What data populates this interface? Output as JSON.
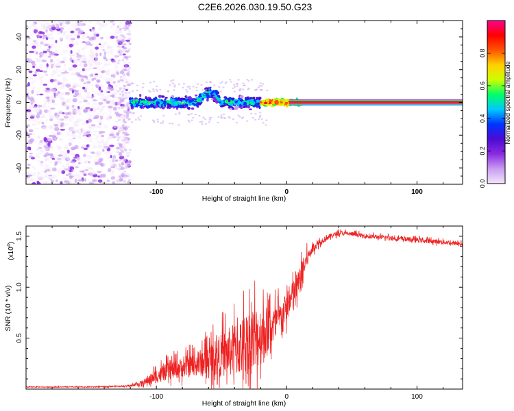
{
  "figure_title": "C2E6.2026.030.19.50.G23",
  "chart_data": [
    {
      "type": "heatmap",
      "title": "C2E6.2026.030.19.50.G23",
      "xlabel": "Height of straight line (km)",
      "ylabel": "Frequency (Hz)",
      "xlim": [
        -200,
        135
      ],
      "ylim": [
        -50,
        50
      ],
      "x_ticks": [
        -100,
        0,
        100
      ],
      "x_tick_labels": [
        "-100",
        "0",
        "100"
      ],
      "y_ticks": [
        -40,
        -20,
        0,
        20,
        40
      ],
      "y_tick_labels": [
        "-40",
        "-20",
        "0",
        "20",
        "40"
      ],
      "carrier_frequency_hz": 0,
      "noise_region_km": [
        -200,
        -120
      ],
      "scintillation_region_km": [
        -120,
        12
      ],
      "steady_signal_region_km": [
        12,
        135
      ],
      "colorbar": {
        "label": "Normalized spectral amplitude",
        "range": [
          0,
          1
        ],
        "ticks": [
          0.0,
          0.2,
          0.4,
          0.6,
          0.8
        ],
        "tick_labels": [
          "0.0",
          "0.2",
          "0.4",
          "0.6",
          "0.8"
        ],
        "colormap_stops": [
          "#f3e6fb",
          "#c89cf0",
          "#8a2be2",
          "#4b0bd4",
          "#0033ff",
          "#00c8ff",
          "#00ff66",
          "#ccff00",
          "#ffd000",
          "#ff5500",
          "#ff0000",
          "#ff0090"
        ]
      }
    },
    {
      "type": "line",
      "xlabel": "Height of straight line (km)",
      "ylabel": "SNR (10 * v/v)",
      "scale_label": "(x10",
      "scale_exponent": "4",
      "xlim": [
        -200,
        135
      ],
      "ylim": [
        0,
        1.6
      ],
      "x_ticks": [
        -100,
        0,
        100
      ],
      "x_tick_labels": [
        "-100",
        "0",
        "100"
      ],
      "y_ticks": [
        0.5,
        1.0,
        1.5
      ],
      "y_tick_labels": [
        "0.5",
        "1.0",
        "1.5"
      ],
      "color": "#ee2222",
      "series": [
        {
          "name": "SNR",
          "x": [
            -200,
            -150,
            -120,
            -110,
            -100,
            -90,
            -80,
            -70,
            -60,
            -50,
            -40,
            -30,
            -25,
            -20,
            -15,
            -10,
            -5,
            0,
            5,
            10,
            15,
            20,
            30,
            40,
            50,
            60,
            80,
            100,
            120,
            135
          ],
          "mean": [
            0.02,
            0.02,
            0.03,
            0.06,
            0.12,
            0.17,
            0.2,
            0.23,
            0.27,
            0.31,
            0.36,
            0.42,
            0.46,
            0.5,
            0.55,
            0.6,
            0.68,
            0.78,
            0.9,
            1.05,
            1.25,
            1.38,
            1.48,
            1.53,
            1.52,
            1.5,
            1.48,
            1.46,
            1.44,
            1.42
          ],
          "spread": [
            0.005,
            0.005,
            0.01,
            0.04,
            0.1,
            0.12,
            0.14,
            0.17,
            0.22,
            0.3,
            0.38,
            0.45,
            0.48,
            0.42,
            0.35,
            0.28,
            0.22,
            0.2,
            0.22,
            0.2,
            0.12,
            0.06,
            0.04,
            0.03,
            0.03,
            0.03,
            0.03,
            0.03,
            0.03,
            0.03
          ]
        }
      ]
    }
  ]
}
